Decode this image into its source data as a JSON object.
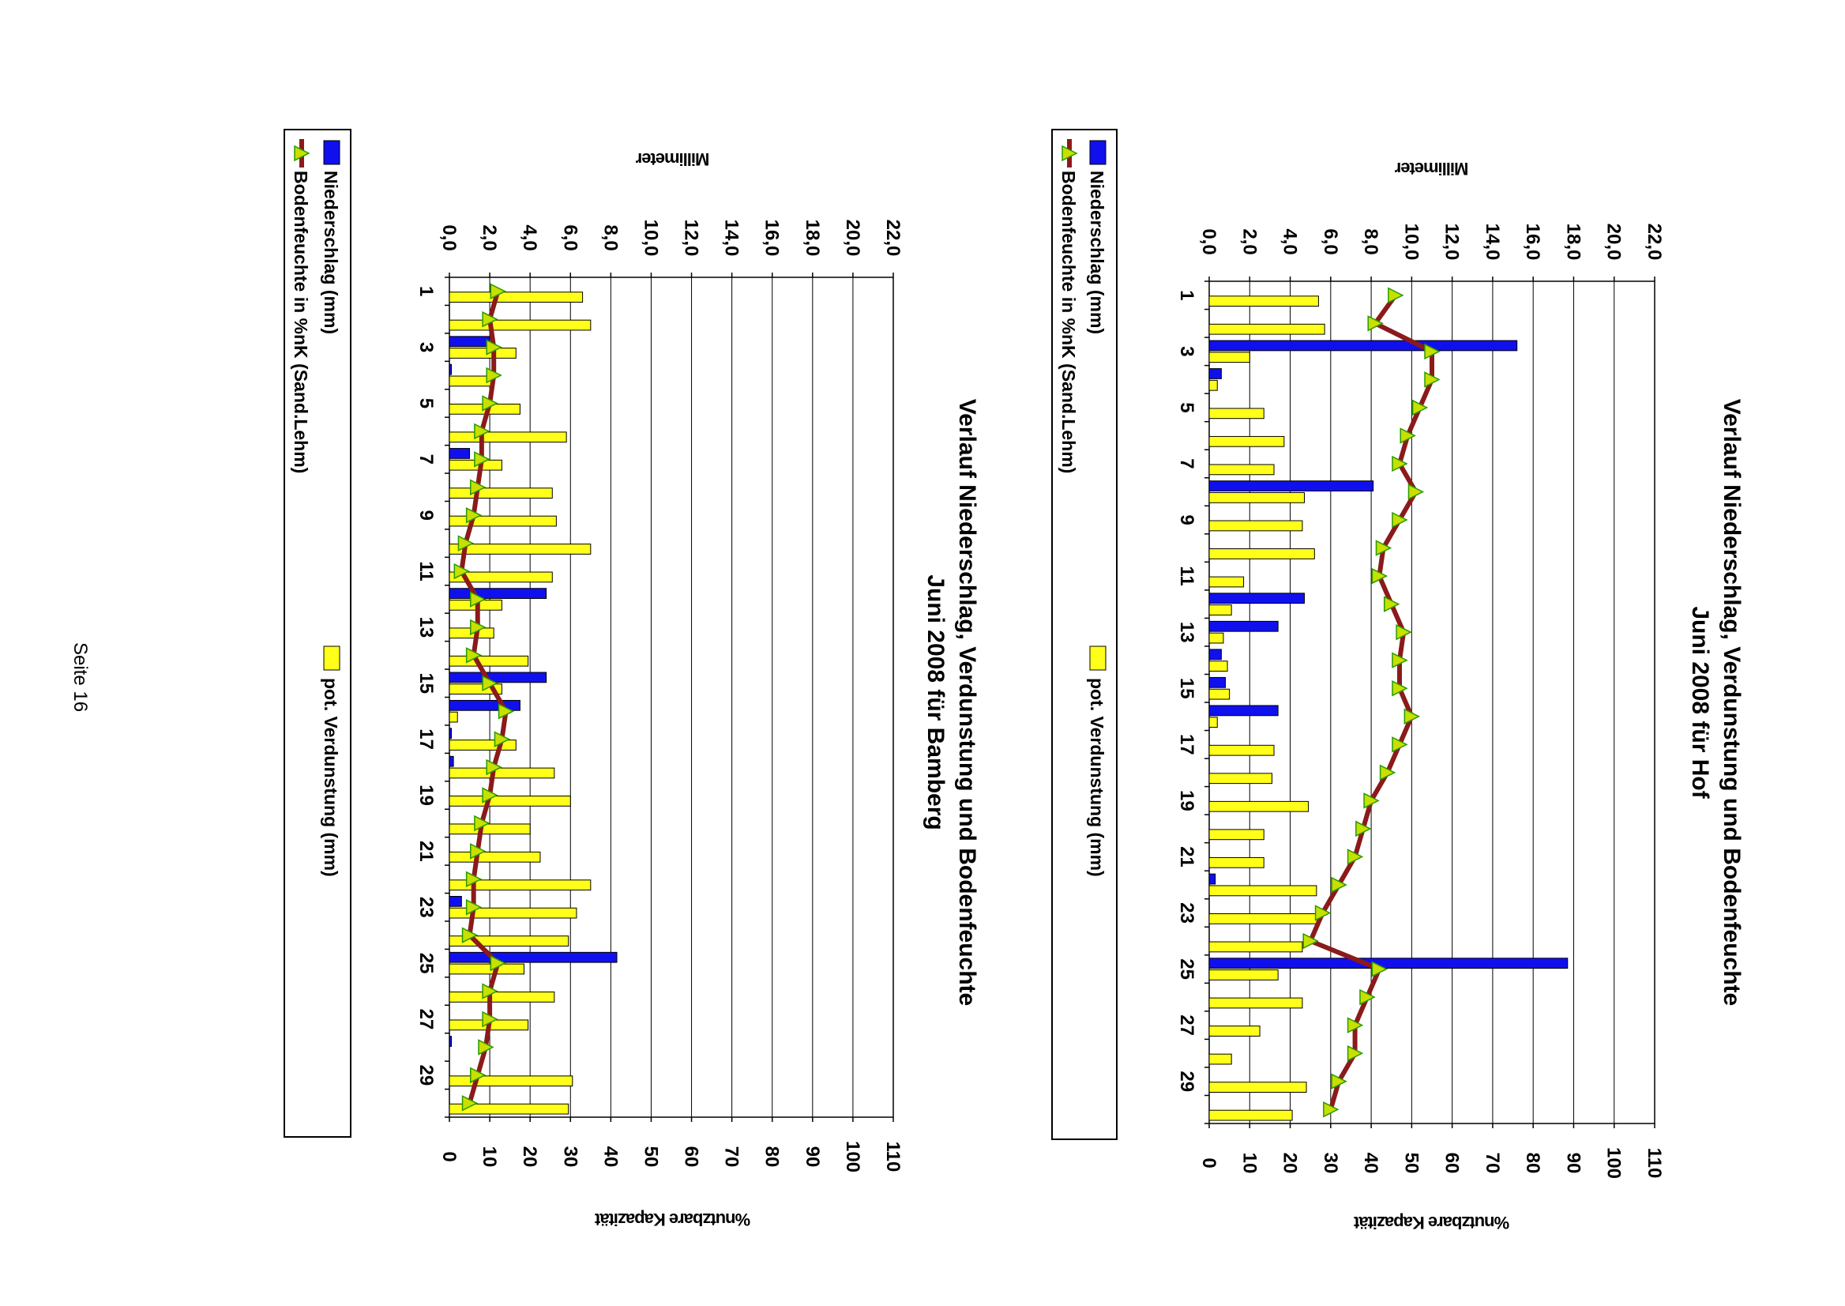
{
  "page": {
    "number_label": "Seite 16"
  },
  "colors": {
    "niederschlag": "#1010ee",
    "verdunstung": "#ffff1a",
    "bodenfeuchte_line": "#8b1a1a",
    "bodenfeuchte_marker": "#c8e000",
    "marker_edge": "#2a9a00"
  },
  "chart_data": [
    {
      "type": "bar",
      "title_line1": "Verlauf Niederschlag, Verdunstung und Bodenfeuchte",
      "title_line2": "Juni 2008 für Hof",
      "ylabel_primary": "Millimeter",
      "ylabel_secondary": "%nutzbare Kapazität",
      "ylim_primary": [
        0,
        22
      ],
      "ylim_secondary": [
        0,
        110
      ],
      "yticks_primary": [
        "0,0",
        "2,0",
        "4,0",
        "6,0",
        "8,0",
        "10,0",
        "12,0",
        "14,0",
        "16,0",
        "18,0",
        "20,0",
        "22,0"
      ],
      "yticks_secondary": [
        "0",
        "10",
        "20",
        "30",
        "40",
        "50",
        "60",
        "70",
        "80",
        "90",
        "100",
        "110"
      ],
      "categories": [
        "1",
        "",
        "3",
        "",
        "5",
        "",
        "7",
        "",
        "9",
        "",
        "11",
        "",
        "13",
        "",
        "15",
        "",
        "17",
        "",
        "19",
        "",
        "21",
        "",
        "23",
        "",
        "25",
        "",
        "27",
        "",
        "29",
        ""
      ],
      "grid": true,
      "legend_position": "left",
      "series": [
        {
          "name": "Niederschlag (mm)",
          "kind": "bar",
          "values": [
            0,
            0,
            15.2,
            0.6,
            0,
            0,
            0,
            8.1,
            0,
            0,
            0,
            4.7,
            3.4,
            0.6,
            0.8,
            3.4,
            0,
            0,
            0,
            0,
            0,
            0.3,
            0,
            0,
            17.7,
            0,
            0,
            0,
            0,
            0
          ]
        },
        {
          "name": "pot. Verdunstung (mm)",
          "kind": "bar",
          "values": [
            5.4,
            5.7,
            2.0,
            0.4,
            2.7,
            3.7,
            3.2,
            4.7,
            4.6,
            5.2,
            1.7,
            1.1,
            0.7,
            0.9,
            1.0,
            0.4,
            3.2,
            3.1,
            4.9,
            2.7,
            2.7,
            5.3,
            5.4,
            4.6,
            3.4,
            4.6,
            2.5,
            1.1,
            4.8,
            4.1
          ]
        },
        {
          "name": "Bodenfeuchte in %nK (Sand.Lehm)",
          "kind": "line",
          "axis": "secondary",
          "values": [
            46,
            41,
            55,
            55,
            52,
            49,
            47,
            51,
            47,
            43,
            42,
            45,
            48,
            47,
            47,
            50,
            47,
            44,
            40,
            38,
            36,
            32,
            28,
            25,
            42,
            39,
            36,
            36,
            32,
            30
          ]
        }
      ]
    },
    {
      "type": "bar",
      "title_line1": "Verlauf Niederschlag, Verdunstung und Bodenfeuchte",
      "title_line2": "Juni 2008 für Bamberg",
      "ylabel_primary": "Millimeter",
      "ylabel_secondary": "%nutzbare Kapazität",
      "ylim_primary": [
        0,
        22
      ],
      "ylim_secondary": [
        0,
        110
      ],
      "yticks_primary": [
        "0,0",
        "2,0",
        "4,0",
        "6,0",
        "8,0",
        "10,0",
        "12,0",
        "14,0",
        "16,0",
        "18,0",
        "20,0",
        "22,0"
      ],
      "yticks_secondary": [
        "0",
        "10",
        "20",
        "30",
        "40",
        "50",
        "60",
        "70",
        "80",
        "90",
        "100",
        "110"
      ],
      "categories": [
        "1",
        "",
        "3",
        "",
        "5",
        "",
        "7",
        "",
        "9",
        "",
        "11",
        "",
        "13",
        "",
        "15",
        "",
        "17",
        "",
        "19",
        "",
        "21",
        "",
        "23",
        "",
        "25",
        "",
        "27",
        "",
        "29",
        ""
      ],
      "grid": true,
      "legend_position": "left",
      "series": [
        {
          "name": "Niederschlag (mm)",
          "kind": "bar",
          "values": [
            0,
            0,
            2.0,
            0.1,
            0,
            0,
            1.0,
            0,
            0,
            0,
            0,
            4.8,
            0,
            0,
            4.8,
            3.5,
            0.1,
            0.2,
            0,
            0,
            0,
            0,
            0.6,
            0,
            8.3,
            0,
            0,
            0.1,
            0,
            0
          ]
        },
        {
          "name": "pot. Verdunstung (mm)",
          "kind": "bar",
          "values": [
            6.6,
            7.0,
            3.3,
            2.1,
            3.5,
            5.8,
            2.6,
            5.1,
            5.3,
            7.0,
            5.1,
            2.6,
            2.2,
            3.9,
            2.6,
            0.4,
            3.3,
            5.2,
            6.0,
            4.0,
            4.5,
            7.0,
            6.3,
            5.9,
            3.7,
            5.2,
            3.9,
            0,
            6.1,
            5.9
          ]
        },
        {
          "name": "Bodenfeuchte in %nK (Sand.Lehm)",
          "kind": "line",
          "axis": "secondary",
          "values": [
            12,
            10,
            11,
            11,
            10,
            8,
            8,
            7,
            6,
            4,
            3,
            7,
            7,
            6,
            10,
            14,
            13,
            11,
            10,
            8,
            7,
            6,
            6,
            5,
            12,
            10,
            10,
            9,
            7,
            5
          ]
        }
      ]
    }
  ]
}
